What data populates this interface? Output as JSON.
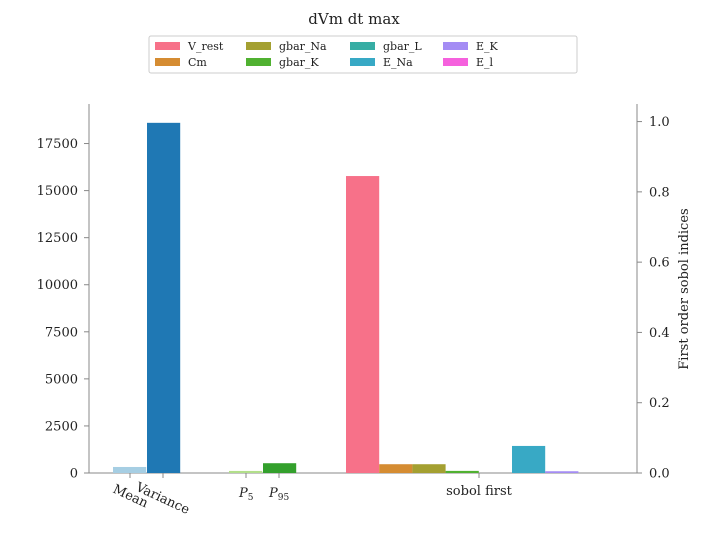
{
  "chart_data": {
    "type": "bar",
    "title": "dVm dt max",
    "left_axis": {
      "ylim": [
        0,
        19600
      ],
      "ticks": [
        0,
        2500,
        5000,
        7500,
        10000,
        12500,
        15000,
        17500
      ],
      "tick_labels": [
        "0",
        "2500",
        "5000",
        "7500",
        "10000",
        "12500",
        "15000",
        "17500"
      ]
    },
    "right_axis": {
      "ylabel": "First order sobol indices",
      "ylim": [
        0,
        1.05
      ],
      "ticks": [
        0.0,
        0.2,
        0.4,
        0.6,
        0.8,
        1.0
      ],
      "tick_labels": [
        "0.0",
        "0.2",
        "0.4",
        "0.6",
        "0.8",
        "1.0"
      ]
    },
    "stat_bars": [
      {
        "name": "Mean",
        "value": 320,
        "color": "#a6cee3"
      },
      {
        "name": "Variance",
        "value": 18600,
        "color": "#1f78b4"
      },
      {
        "name": "P5",
        "value": 110,
        "color": "#b2df8a"
      },
      {
        "name": "P95",
        "value": 520,
        "color": "#33a02c"
      }
    ],
    "x_labels": {
      "mean": "Mean",
      "variance": "Variance",
      "p5_base": "P",
      "p5_sub": "5",
      "p95_base": "P",
      "p95_sub": "95",
      "sobol": "sobol first"
    },
    "sobol_first": [
      {
        "name": "V_rest",
        "value": 0.845,
        "color": "#f77189"
      },
      {
        "name": "Cm",
        "value": 0.025,
        "color": "#d58c32"
      },
      {
        "name": "gbar_Na",
        "value": 0.025,
        "color": "#a4a031"
      },
      {
        "name": "gbar_K",
        "value": 0.006,
        "color": "#50b131"
      },
      {
        "name": "gbar_L",
        "value": 0.0,
        "color": "#36ada4"
      },
      {
        "name": "E_Na",
        "value": 0.077,
        "color": "#38a9c5"
      },
      {
        "name": "E_K",
        "value": 0.005,
        "color": "#a48cf4"
      },
      {
        "name": "E_l",
        "value": 0.0,
        "color": "#f561dd"
      }
    ],
    "legend": {
      "placement": "top-center",
      "entries": [
        "V_rest",
        "Cm",
        "gbar_Na",
        "gbar_K",
        "gbar_L",
        "E_Na",
        "E_K",
        "E_l"
      ]
    }
  }
}
